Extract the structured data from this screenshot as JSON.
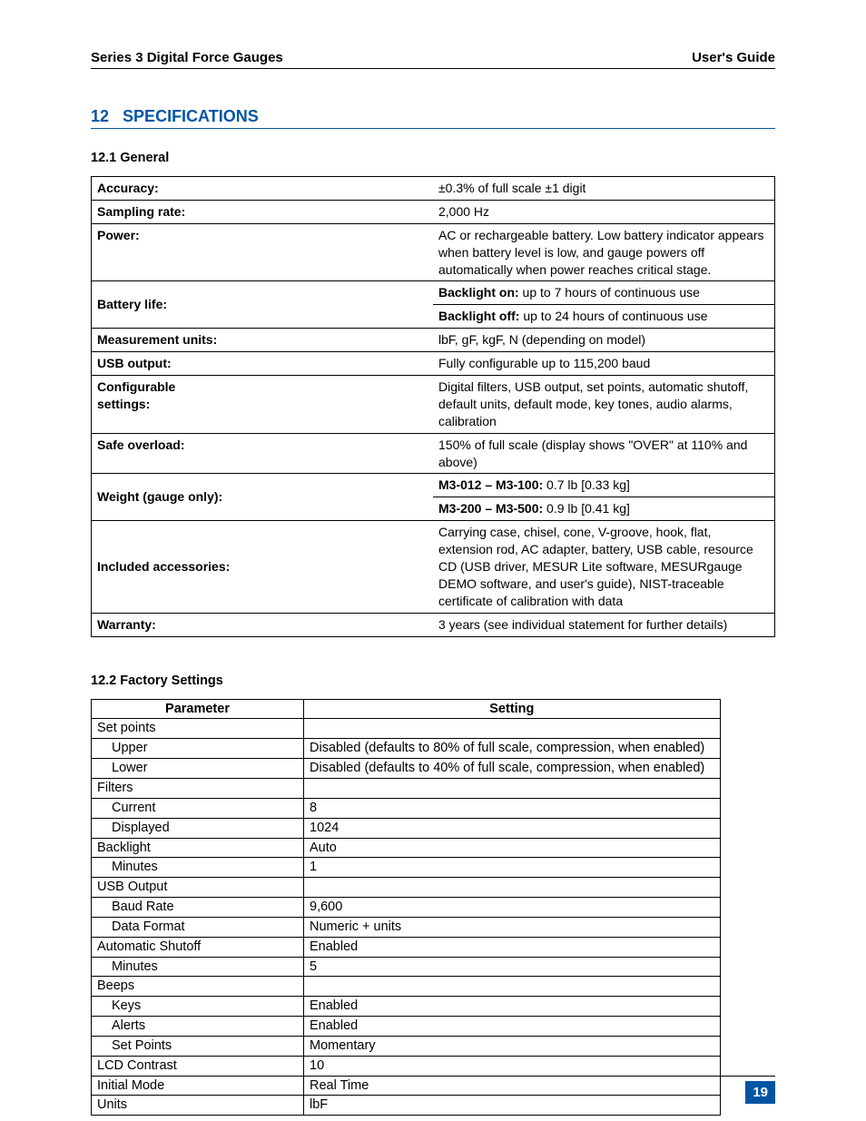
{
  "header": {
    "left": "Series 3 Digital Force Gauges",
    "right": "User's Guide"
  },
  "section": {
    "number": "12",
    "title": "SPECIFICATIONS"
  },
  "general": {
    "heading": "12.1 General",
    "rows": {
      "accuracy_label": "Accuracy:",
      "accuracy_value": "±0.3% of full scale ±1 digit",
      "sampling_label": "Sampling rate:",
      "sampling_value": "2,000 Hz",
      "power_label": "Power:",
      "power_value": "AC or rechargeable battery. Low battery indicator appears when battery level is low, and gauge powers off automatically when power reaches critical stage.",
      "battery_label": "Battery life:",
      "battery_on_b": "Backlight on:",
      "battery_on_t": " up to 7 hours of continuous use",
      "battery_off_b": "Backlight off:",
      "battery_off_t": " up to 24 hours of continuous use",
      "units_label": "Measurement units:",
      "units_value": "lbF, gF, kgF, N (depending on model)",
      "usb_label": "USB output:",
      "usb_value": "Fully configurable up to 115,200 baud",
      "config_label1": "Configurable",
      "config_label2": "settings:",
      "config_value": "Digital filters, USB output, set points, automatic shutoff, default units, default mode, key tones, audio alarms, calibration",
      "safe_label": "Safe overload:",
      "safe_value": "150% of full scale (display shows \"OVER\" at 110% and above)",
      "weight_label": "Weight (gauge only):",
      "weight1_b": "M3-012 – M3-100:",
      "weight1_t": " 0.7 lb [0.33 kg]",
      "weight2_b": "M3-200 – M3-500:",
      "weight2_t": " 0.9 lb [0.41 kg]",
      "acc_label": "Included accessories:",
      "acc_value": "Carrying case, chisel, cone, V-groove, hook, flat, extension rod, AC adapter, battery, USB cable, resource CD (USB driver, MESUR Lite software, MESURgauge DEMO software, and user's guide), NIST-traceable certificate of calibration with data",
      "warranty_label": "Warranty:",
      "warranty_value": "3 years (see individual statement for further details)"
    }
  },
  "factory": {
    "heading": "12.2 Factory Settings",
    "col1": "Parameter",
    "col2": "Setting",
    "rows": [
      {
        "p": "Set points",
        "s": "",
        "indent": false
      },
      {
        "p": "Upper",
        "s": "Disabled (defaults to 80% of full scale, compression, when enabled)",
        "indent": true
      },
      {
        "p": "Lower",
        "s": "Disabled (defaults to 40% of full scale, compression, when enabled)",
        "indent": true
      },
      {
        "p": "Filters",
        "s": "",
        "indent": false
      },
      {
        "p": "Current",
        "s": "8",
        "indent": true
      },
      {
        "p": "Displayed",
        "s": "1024",
        "indent": true
      },
      {
        "p": "Backlight",
        "s": "Auto",
        "indent": false
      },
      {
        "p": "Minutes",
        "s": "1",
        "indent": true
      },
      {
        "p": "USB Output",
        "s": "",
        "indent": false
      },
      {
        "p": "Baud Rate",
        "s": "9,600",
        "indent": true
      },
      {
        "p": "Data Format",
        "s": "Numeric + units",
        "indent": true
      },
      {
        "p": "Automatic Shutoff",
        "s": "Enabled",
        "indent": false
      },
      {
        "p": "Minutes",
        "s": "5",
        "indent": true
      },
      {
        "p": "Beeps",
        "s": "",
        "indent": false
      },
      {
        "p": "Keys",
        "s": "Enabled",
        "indent": true
      },
      {
        "p": "Alerts",
        "s": "Enabled",
        "indent": true
      },
      {
        "p": "Set Points",
        "s": "Momentary",
        "indent": true
      },
      {
        "p": "LCD Contrast",
        "s": "10",
        "indent": false
      },
      {
        "p": "Initial Mode",
        "s": "Real Time",
        "indent": false
      },
      {
        "p": "Units",
        "s": "lbF",
        "indent": false
      }
    ]
  },
  "page_number": "19"
}
